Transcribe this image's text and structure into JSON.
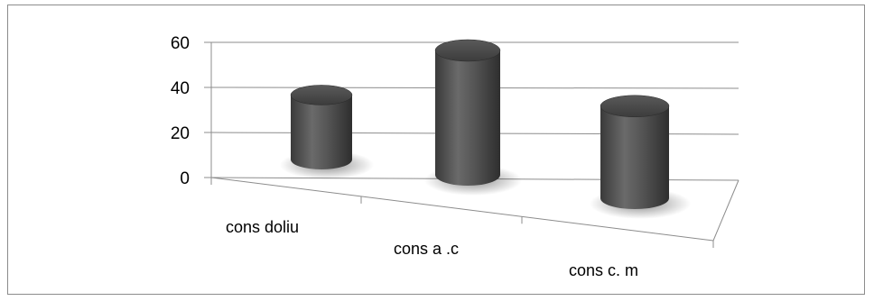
{
  "chart_data": {
    "type": "bar",
    "style": "3d-cylinder",
    "title": "",
    "xlabel": "",
    "ylabel": "",
    "categories": [
      "cons doliu",
      "cons a .c",
      "cons c. m"
    ],
    "values": [
      28,
      54,
      40
    ],
    "ylim": [
      0,
      60
    ],
    "yticks": [
      "0",
      "20",
      "40",
      "60"
    ],
    "grid": true,
    "legend": "none",
    "colors": {
      "bar": "#4a4a4a",
      "grid": "#8c8c8c",
      "axis": "#8c8c8c"
    }
  }
}
